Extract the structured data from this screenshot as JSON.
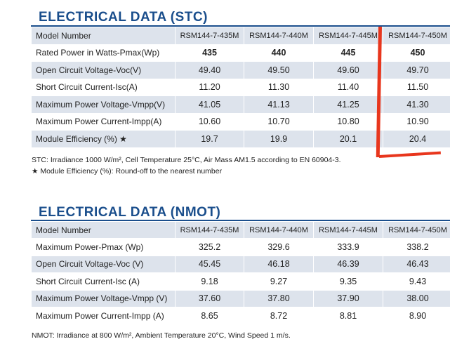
{
  "stc": {
    "title": "ELECTRICAL DATA (STC)",
    "header": [
      "Model Number",
      "RSM144-7-435M",
      "RSM144-7-440M",
      "RSM144-7-445M",
      "RSM144-7-450M"
    ],
    "rows": [
      [
        "Rated Power in Watts-Pmax(Wp)",
        "435",
        "440",
        "445",
        "450"
      ],
      [
        "Open Circuit Voltage-Voc(V)",
        "49.40",
        "49.50",
        "49.60",
        "49.70"
      ],
      [
        "Short Circuit Current-Isc(A)",
        "11.20",
        "11.30",
        "11.40",
        "11.50"
      ],
      [
        "Maximum Power Voltage-Vmpp(V)",
        "41.05",
        "41.13",
        "41.25",
        "41.30"
      ],
      [
        "Maximum Power Current-Impp(A)",
        "10.60",
        "10.70",
        "10.80",
        "10.90"
      ],
      [
        "Module Efficiency (%) ★",
        "19.7",
        "19.9",
        "20.1",
        "20.4"
      ]
    ],
    "note1": "STC: Irradiance 1000 W/m², Cell Temperature 25°C, Air Mass AM1.5 according to EN 60904-3.",
    "note2": "★ Module Efficiency (%): Round-off to the nearest number"
  },
  "nmot": {
    "title": "ELECTRICAL DATA (NMOT)",
    "header": [
      "Model Number",
      "RSM144-7-435M",
      "RSM144-7-440M",
      "RSM144-7-445M",
      "RSM144-7-450M"
    ],
    "rows": [
      [
        "Maximum Power-Pmax (Wp)",
        "325.2",
        "329.6",
        "333.9",
        "338.2"
      ],
      [
        "Open Circuit Voltage-Voc (V)",
        "45.45",
        "46.18",
        "46.39",
        "46.43"
      ],
      [
        "Short Circuit Current-Isc (A)",
        "9.18",
        "9.27",
        "9.35",
        "9.43"
      ],
      [
        "Maximum Power Voltage-Vmpp (V)",
        "37.60",
        "37.80",
        "37.90",
        "38.00"
      ],
      [
        "Maximum Power Current-Impp (A)",
        "8.65",
        "8.72",
        "8.81",
        "8.90"
      ]
    ],
    "note1": "NMOT: Irradiance at 800 W/m², Ambient Temperature 20°C, Wind Speed 1 m/s."
  },
  "colors": {
    "title": "#1a4e8c",
    "row_shade": "#dde3ec",
    "annotation": "#e8361d"
  }
}
